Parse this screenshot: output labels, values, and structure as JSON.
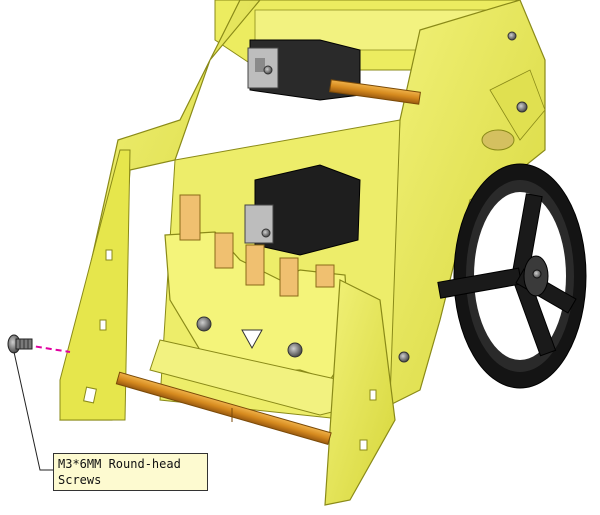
{
  "callout": {
    "line1": "M3*6MM Round-head",
    "line2": "Screws"
  },
  "colors": {
    "acrylic_fill": "#e8e84a",
    "acrylic_light": "#f4f47a",
    "acrylic_edge": "#9a9a1a",
    "servo_body": "#1e1e1e",
    "standoff": "#d38a1e",
    "wheel": "#1a1a1a",
    "screw": "#606060",
    "guide_line": "#e000a0",
    "callout_bg": "#fdfad0"
  },
  "icons": [
    "round-head-screw-icon",
    "servo-icon",
    "wheel-icon",
    "standoff-icon"
  ]
}
